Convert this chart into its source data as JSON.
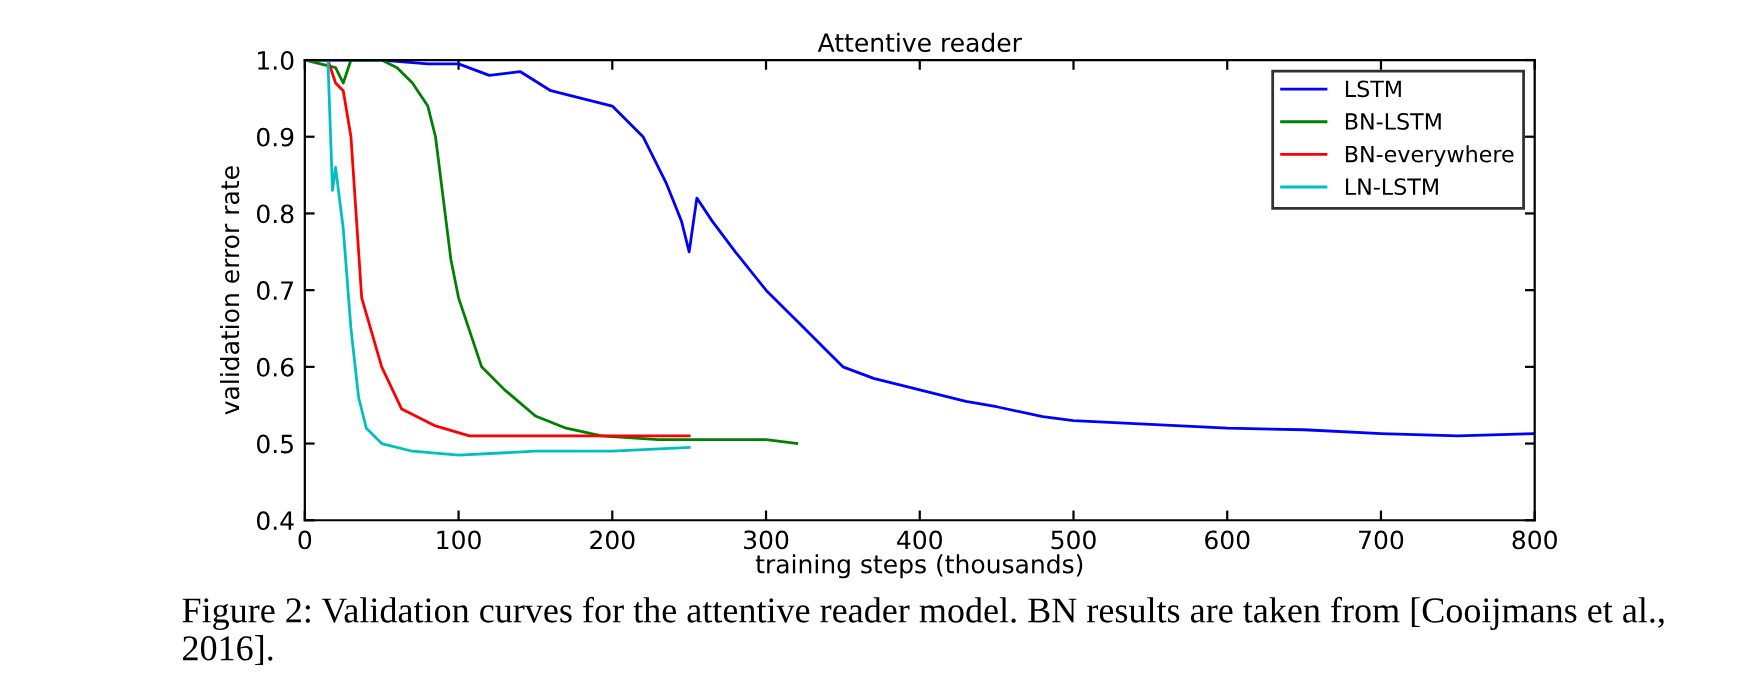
{
  "chart_data": {
    "type": "line",
    "title": "Attentive reader",
    "xlabel": "training steps (thousands)",
    "ylabel": "validation error rate",
    "xlim": [
      0,
      800
    ],
    "xticks": [
      0,
      100,
      200,
      300,
      400,
      500,
      600,
      700,
      800
    ],
    "ylim": [
      0.4,
      1.0
    ],
    "yticks": [
      0.4,
      0.5,
      0.6,
      0.7,
      0.8,
      0.9,
      {
        "value": 1.0,
        "label": "1.0"
      }
    ],
    "grid": false,
    "legend": "top right",
    "marker": "none",
    "line_style": "solid",
    "annotations": [
      "Figure 2: Validation curves for the attentive reader model. BN results are taken from [Cooijmans et al., 2016]."
    ],
    "series": [
      {
        "name": "LSTM",
        "color": "#0000ff",
        "x": [
          0,
          50,
          80,
          100,
          120,
          140,
          160,
          180,
          200,
          220,
          235,
          245,
          250,
          255,
          265,
          280,
          300,
          320,
          340,
          350,
          370,
          400,
          430,
          450,
          480,
          500,
          550,
          600,
          650,
          700,
          750,
          800
        ],
        "values": [
          1.0,
          1.0,
          0.995,
          0.995,
          0.98,
          0.985,
          0.96,
          0.95,
          0.94,
          0.9,
          0.84,
          0.79,
          0.75,
          0.82,
          0.79,
          0.75,
          0.7,
          0.66,
          0.62,
          0.6,
          0.585,
          0.57,
          0.555,
          0.548,
          0.535,
          0.53,
          0.525,
          0.52,
          0.518,
          0.513,
          0.51,
          0.513
        ]
      },
      {
        "name": "BN-LSTM",
        "color": "#008000",
        "x": [
          0,
          20,
          25,
          30,
          50,
          60,
          70,
          80,
          85,
          90,
          95,
          100,
          115,
          130,
          150,
          170,
          193,
          230,
          260,
          300,
          320
        ],
        "values": [
          1.0,
          0.99,
          0.97,
          1.0,
          1.0,
          0.99,
          0.97,
          0.94,
          0.9,
          0.82,
          0.74,
          0.69,
          0.6,
          0.57,
          0.536,
          0.52,
          0.51,
          0.505,
          0.505,
          0.505,
          0.5
        ]
      },
      {
        "name": "BN-everywhere",
        "color": "#ff0000",
        "x": [
          0,
          15,
          20,
          25,
          30,
          37,
          50,
          63,
          85,
          107,
          150,
          200,
          250
        ],
        "values": [
          1.0,
          1.0,
          0.97,
          0.96,
          0.9,
          0.69,
          0.6,
          0.545,
          0.523,
          0.51,
          0.51,
          0.51,
          0.51
        ]
      },
      {
        "name": "LN-LSTM",
        "color": "#00bfbf",
        "x": [
          0,
          15,
          18,
          20,
          25,
          30,
          35,
          40,
          50,
          70,
          100,
          150,
          200,
          250
        ],
        "values": [
          1.0,
          1.0,
          0.83,
          0.86,
          0.78,
          0.65,
          0.56,
          0.52,
          0.5,
          0.49,
          0.485,
          0.49,
          0.49,
          0.495
        ]
      }
    ]
  }
}
